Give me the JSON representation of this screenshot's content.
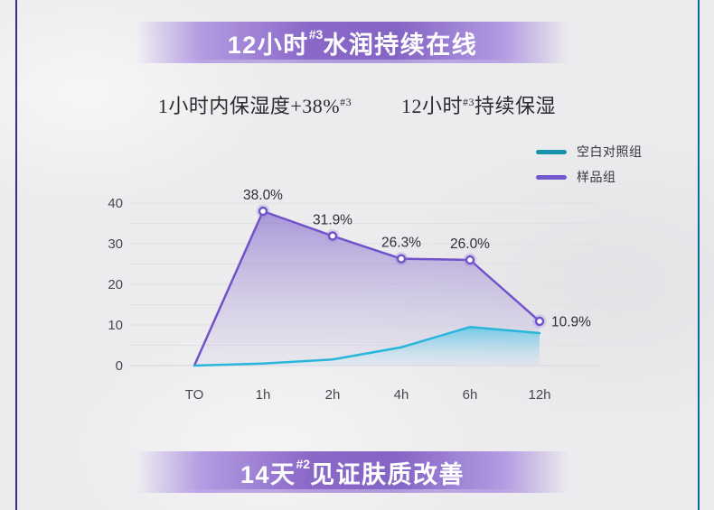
{
  "page": {
    "top_banner": {
      "prefix": "12小时",
      "sup": "#3",
      "suffix": "水润持续在线"
    },
    "bottom_banner": {
      "prefix": "14天",
      "sup": "#2",
      "suffix": "见证肤质改善"
    },
    "headings": {
      "left": {
        "prefix": "1小时内保湿度+38%",
        "sup": "#3",
        "suffix": ""
      },
      "right": {
        "prefix": "12小时",
        "sup": "#3",
        "suffix": "持续保湿"
      }
    }
  },
  "legend": {
    "items": [
      {
        "label": "空白对照组",
        "color": "#1794ab"
      },
      {
        "label": "样品组",
        "color": "#7257cc"
      }
    ]
  },
  "chart_data": {
    "type": "area",
    "categories": [
      "TO",
      "1h",
      "2h",
      "4h",
      "6h",
      "12h"
    ],
    "series": [
      {
        "name": "样品组",
        "values": [
          0,
          38.0,
          31.9,
          26.3,
          26.0,
          10.9
        ],
        "point_labels": [
          "",
          "38.0%",
          "31.9%",
          "26.3%",
          "26.0%",
          "10.9%"
        ],
        "line_color": "#7152c8",
        "fill_top": "rgba(125,97,203,0.62)",
        "fill_bottom": "rgba(196,188,224,0.16)",
        "markers": true
      },
      {
        "name": "空白对照组",
        "values": [
          0,
          0.5,
          1.5,
          4.5,
          9.5,
          8.0
        ],
        "point_labels": [
          "",
          "",
          "",
          "",
          "",
          ""
        ],
        "line_color": "#2ab5da",
        "fill_top": "rgba(70,196,229,0.72)",
        "fill_bottom": "rgba(205,236,245,0.18)",
        "markers": false
      }
    ],
    "ylim": [
      0,
      40
    ],
    "yticks": [
      0,
      10,
      20,
      30,
      40
    ],
    "grid": true,
    "grid_step": 5,
    "legend_position": "top-right",
    "xlabel": "",
    "ylabel": ""
  },
  "colors": {
    "banner_purple": "#8a68c8",
    "edge_left": "#3b2c90",
    "edge_right": "#0a6f94",
    "grid": "#e1e1e4",
    "axis_text": "#47474d"
  }
}
